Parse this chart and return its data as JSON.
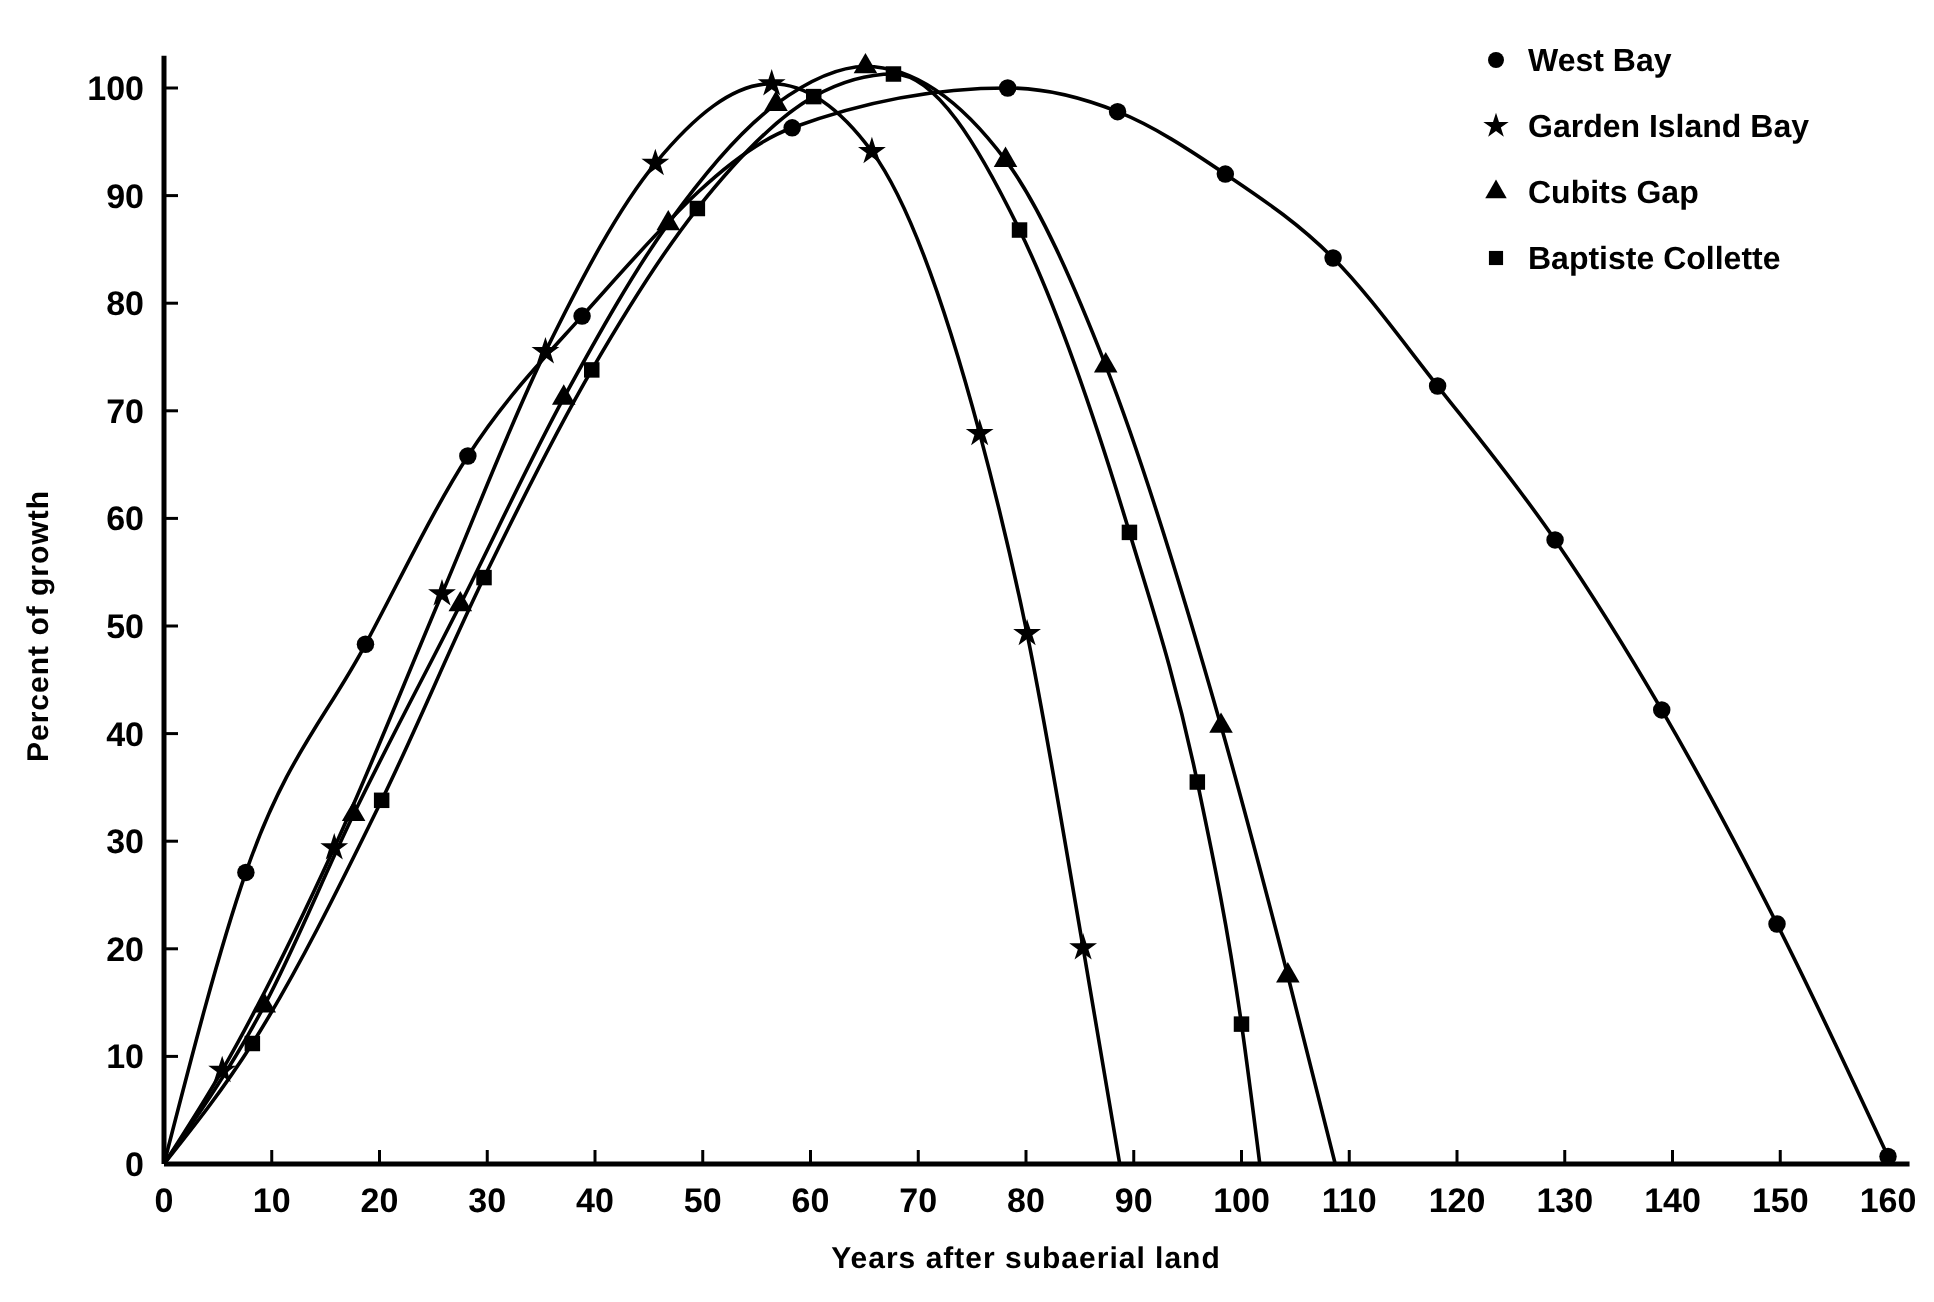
{
  "chart_data": {
    "type": "scatter",
    "xlabel": "Years after subaerial land",
    "ylabel": "Percent of growth",
    "xlim": [
      0,
      162
    ],
    "ylim": [
      0,
      103
    ],
    "xticks": [
      0,
      10,
      20,
      30,
      40,
      50,
      60,
      70,
      80,
      90,
      100,
      110,
      120,
      130,
      140,
      150,
      160
    ],
    "yticks": [
      0,
      10,
      20,
      30,
      40,
      50,
      60,
      70,
      80,
      90,
      100
    ],
    "grid": false,
    "legend": "top right",
    "series": [
      {
        "type": "line",
        "marker": "none",
        "color": "#000000",
        "x": [
          0,
          7.6,
          18.7,
          28.2,
          38.8,
          58.3,
          78.3,
          88.5,
          98.5,
          108.5,
          118.2,
          129.1,
          139,
          149.7,
          160
        ],
        "values": [
          0,
          27.1,
          48.3,
          65.8,
          78.8,
          96.3,
          100,
          97.8,
          92,
          84.2,
          72.3,
          58,
          42.2,
          22.3,
          0.7
        ]
      },
      {
        "type": "line",
        "marker": "none",
        "color": "#000000",
        "x": [
          0,
          5.4,
          15.8,
          25.8,
          35.4,
          45.6,
          56.4,
          65.7,
          75.7,
          80.1,
          85.3,
          88.7
        ],
        "values": [
          0,
          8.7,
          29.4,
          53,
          75.5,
          93,
          100.4,
          94.1,
          67.9,
          49.3,
          20.1,
          0
        ]
      },
      {
        "type": "line",
        "marker": "none",
        "color": "#000000",
        "x": [
          0,
          9.3,
          17.6,
          27.5,
          37.1,
          46.8,
          56.8,
          65.1,
          78.1,
          87.4,
          98.1,
          104.3,
          108.7
        ],
        "values": [
          0,
          14.7,
          32.5,
          52,
          71.2,
          87.4,
          98.5,
          102,
          93.3,
          74.2,
          40.7,
          17.5,
          0
        ]
      },
      {
        "type": "line",
        "marker": "none",
        "color": "#000000",
        "x": [
          0,
          8.2,
          20.2,
          29.7,
          39.7,
          49.5,
          60.3,
          67.7,
          79.4,
          89.6,
          95.9,
          100,
          101.7
        ],
        "values": [
          0,
          11.2,
          33.8,
          54.5,
          73.8,
          88.8,
          99.2,
          101.3,
          86.8,
          58.7,
          35.5,
          13,
          0
        ]
      },
      {
        "name": "West Bay",
        "marker": "circle",
        "color": "#000000",
        "x": [
          7.6,
          18.7,
          28.2,
          38.8,
          58.3,
          78.3,
          88.5,
          98.5,
          108.5,
          118.2,
          129.1,
          139,
          149.7,
          160
        ],
        "values": [
          27.1,
          48.3,
          65.8,
          78.8,
          96.3,
          100,
          97.8,
          92,
          84.2,
          72.3,
          58,
          42.2,
          22.3,
          0.7
        ]
      },
      {
        "name": "Garden Island Bay",
        "marker": "star",
        "color": "#000000",
        "x": [
          5.4,
          15.8,
          25.8,
          35.4,
          45.6,
          56.4,
          65.7,
          75.7,
          80.1,
          85.3
        ],
        "values": [
          8.7,
          29.4,
          53,
          75.5,
          93,
          100.4,
          94.1,
          67.9,
          49.3,
          20.1
        ]
      },
      {
        "name": "Cubits Gap",
        "marker": "triangle",
        "color": "#000000",
        "x": [
          9.3,
          17.6,
          27.5,
          37.1,
          46.8,
          56.8,
          65.1,
          78.1,
          87.4,
          98.1,
          104.3
        ],
        "values": [
          14.7,
          32.5,
          52,
          71.2,
          87.4,
          98.5,
          102,
          93.3,
          74.2,
          40.7,
          17.5
        ]
      },
      {
        "name": "Baptiste Collette",
        "marker": "square",
        "color": "#000000",
        "x": [
          8.2,
          20.2,
          29.7,
          39.7,
          49.5,
          60.3,
          67.7,
          79.4,
          89.6,
          95.9,
          100
        ],
        "values": [
          11.2,
          33.8,
          54.5,
          73.8,
          88.8,
          99.2,
          101.3,
          86.8,
          58.7,
          35.5,
          13
        ]
      }
    ]
  }
}
